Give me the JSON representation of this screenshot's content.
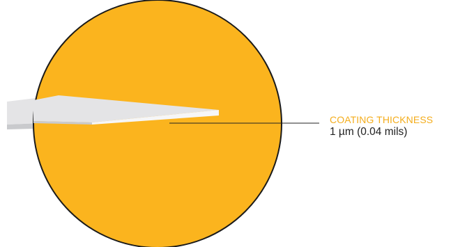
{
  "callout": {
    "title": "COATING THICKNESS",
    "value": "1 µm (0.04 mils)"
  },
  "colors": {
    "circle_fill": "#FBB41E",
    "circle_stroke": "#1A1A1A",
    "title_text": "#F4AD1C",
    "substrate_top": "#E4E4E6",
    "substrate_edge": "#F6F6F7",
    "substrate_front": "#C9CACD",
    "leader_line": "#222222"
  }
}
